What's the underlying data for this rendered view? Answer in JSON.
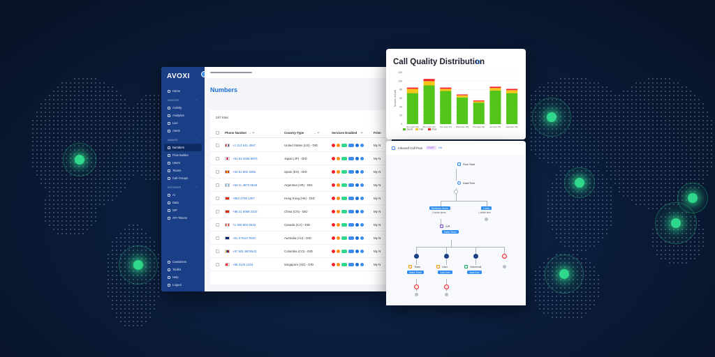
{
  "colors": {
    "background": "#0a1a36",
    "sidebar": "#1b3f86",
    "accent": "#1d6fd8",
    "good": "#52c41a",
    "fair": "#f5c518",
    "poor": "#f5222d",
    "glow": "#2fd88a"
  },
  "app": {
    "logo": "AVOXI",
    "sidebar": {
      "top_items": [
        {
          "label": "Home",
          "icon": "home-icon"
        }
      ],
      "sections": [
        {
          "title": "MONITOR",
          "items": [
            {
              "label": "Activity",
              "icon": "activity-icon"
            },
            {
              "label": "Analytics",
              "icon": "analytics-icon"
            },
            {
              "label": "Live",
              "icon": "live-icon"
            },
            {
              "label": "Alerts",
              "icon": "bell-icon"
            }
          ]
        },
        {
          "title": "MANAGE",
          "items": [
            {
              "label": "Numbers",
              "icon": "phone-icon",
              "active": true
            },
            {
              "label": "Flow Builder",
              "icon": "flow-icon"
            },
            {
              "label": "Users",
              "icon": "users-icon"
            },
            {
              "label": "Teams",
              "icon": "teams-icon"
            },
            {
              "label": "Call Groups",
              "icon": "call-groups-icon"
            }
          ]
        },
        {
          "title": "INTEGRATE",
          "items": [
            {
              "label": "AI",
              "icon": "ai-icon"
            },
            {
              "label": "Data",
              "icon": "data-icon"
            },
            {
              "label": "SIP",
              "icon": "sip-icon"
            },
            {
              "label": "API Tokens",
              "icon": "key-icon"
            }
          ]
        }
      ],
      "bottom_items": [
        {
          "label": "Customers",
          "icon": "customers-icon"
        },
        {
          "label": "Toolkit",
          "icon": "toolkit-icon"
        },
        {
          "label": "Help",
          "icon": "help-icon"
        },
        {
          "label": "Logout",
          "icon": "logout-icon"
        }
      ]
    },
    "page_title": "Numbers",
    "total": "247 total",
    "columns": [
      "Phone Number",
      "Country-Type",
      "Services Enabled",
      "Frien"
    ],
    "rows": [
      {
        "phone": "+1 212 641 4567",
        "country": "United States (US) - DID",
        "friendly": "My N",
        "flag": [
          "#b22234",
          "#ffffff",
          "#3c3b6e"
        ]
      },
      {
        "phone": "+81 63 3458 9876",
        "country": "Japan (JP) - DID",
        "friendly": "My N",
        "flag": [
          "#ffffff",
          "#bc002d",
          "#ffffff"
        ]
      },
      {
        "phone": "+34 91 802 3456",
        "country": "Spain (ES) - DID",
        "friendly": "My N",
        "flag": [
          "#c60b1e",
          "#ffc400",
          "#c60b1e"
        ]
      },
      {
        "phone": "+54 11 4873 6543",
        "country": "Argentina (AR) - DID",
        "friendly": "My N",
        "flag": [
          "#74acdf",
          "#ffffff",
          "#74acdf"
        ]
      },
      {
        "phone": "+852 2769 1357",
        "country": "Hong Kong (HK) - DID",
        "friendly": "My N",
        "flag": [
          "#de2910",
          "#de2910",
          "#de2910"
        ]
      },
      {
        "phone": "+86 21 6068 3432",
        "country": "China (CN) - DID",
        "friendly": "My N",
        "flag": [
          "#de2910",
          "#de2910",
          "#de2910"
        ]
      },
      {
        "phone": "+1 306 804 5519",
        "country": "Canada (CA) - DID",
        "friendly": "My N",
        "flag": [
          "#d52b1e",
          "#ffffff",
          "#d52b1e"
        ]
      },
      {
        "phone": "+61 3 9114 7810",
        "country": "Australia (AU) - DID",
        "friendly": "My N",
        "flag": [
          "#012169",
          "#012169",
          "#012169"
        ]
      },
      {
        "phone": "+57 601 9876543",
        "country": "Colombia (CO) - DID",
        "friendly": "My N",
        "flag": [
          "#fcd116",
          "#003893",
          "#ce1126"
        ]
      },
      {
        "phone": "+65 3126 1234",
        "country": "Singapore (SG) - DID",
        "friendly": "My N",
        "flag": [
          "#ef3340",
          "#ef3340",
          "#ffffff"
        ]
      }
    ]
  },
  "chart_data": {
    "type": "bar",
    "title": "Call Quality Distribution",
    "ylabel": "Number of Calls",
    "xlabel": "",
    "categories": [
      "Sun (Apr 20)",
      "Mon (Apr 21)",
      "Tue (Apr 22)",
      "Wed (Apr 23)",
      "Thu (Apr 24)",
      "Fri (Apr 25)",
      "Sat (Apr 26)"
    ],
    "ylim": [
      0,
      120
    ],
    "yticks": [
      0,
      20,
      40,
      60,
      80,
      100,
      120
    ],
    "series": [
      {
        "name": "Good",
        "values": [
          72,
          90,
          77,
          62,
          50,
          78,
          72
        ]
      },
      {
        "name": "Fair",
        "values": [
          10,
          10,
          5,
          5,
          3,
          6,
          7
        ]
      },
      {
        "name": "Poor",
        "values": [
          3,
          5,
          3,
          2,
          2,
          3,
          3
        ]
      }
    ],
    "legend": "bottom-left",
    "grid": true
  },
  "flow": {
    "title": "Inbound Call Flow",
    "badge": "DRAFT",
    "badge2": "Edit",
    "nodes": {
      "flow_start": "Flow Start",
      "date_time": "Date/Time",
      "business_hours": "Business Hours",
      "business_hours_sub": "2 active times",
      "lunch": "Lunch",
      "lunch_sub": "1 active time",
      "ivr": "IVR",
      "sales_team_tag": "Sales Team",
      "team": "Team",
      "team_tag": "Sales Team",
      "user": "User",
      "user_tag": "John Doe",
      "voicemail": "Voicemail",
      "voicemail_tag": "Jane Doe",
      "opt1": "1",
      "opt2": "2",
      "opt3": "3"
    }
  }
}
